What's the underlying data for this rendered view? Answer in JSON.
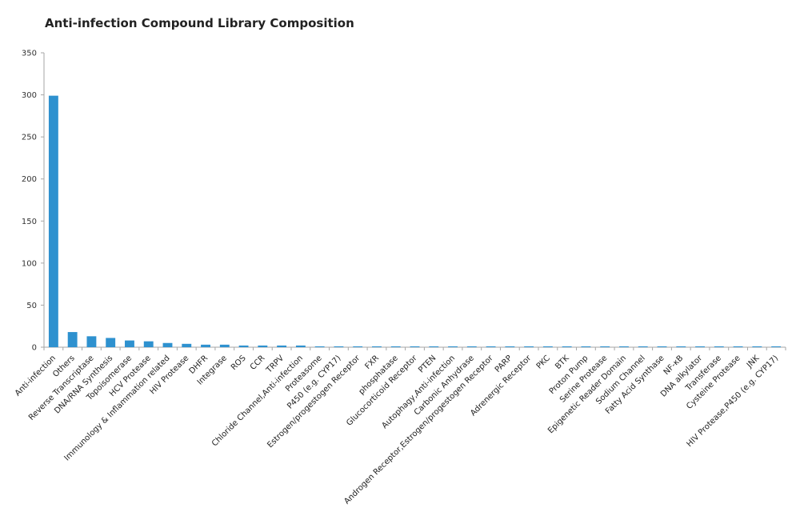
{
  "chart_data": {
    "type": "bar",
    "title": "Anti-infection Compound Library Composition",
    "xlabel": "",
    "ylabel": "",
    "ylim": [
      0,
      350
    ],
    "yticks": [
      0,
      50,
      100,
      150,
      200,
      250,
      300,
      350
    ],
    "grid": false,
    "legend": "none",
    "bar_color": "#2E91CF",
    "axis_color": "#A6A6A6",
    "categories": [
      "Anti-infection",
      "Others",
      "Reverse Transcriptase",
      "DNA/RNA Synthesis",
      "Topoisomerase",
      "HCV Protease",
      "Immunology & Inflammation related",
      "HIV Protease",
      "DHFR",
      "Integrase",
      "ROS",
      "CCR",
      "TRPV",
      "Chloride Channel,Anti-infection",
      "Proteasome",
      "P450 (e.g. CYP17)",
      "Estrogen/progestogen Receptor",
      "FXR",
      "phosphatase",
      "Glucocorticoid Receptor",
      "PTEN",
      "Autophagy,Anti-infection",
      "Carbonic Anhydrase",
      "Androgen Receptor,Estrogen/progestogen Receptor",
      "PARP",
      "Adrenergic Receptor",
      "PKC",
      "BTK",
      "Proton Pump",
      "Serine Protease",
      "Epigenetic Reader Domain",
      "Sodium Channel",
      "Fatty Acid Synthase",
      "NF-κB",
      "DNA alkylator",
      "Transferase",
      "Cysteine Protease",
      "JNK",
      "HIV Protease,P450 (e.g. CYP17)"
    ],
    "values": [
      299,
      18,
      13,
      11,
      8,
      7,
      5,
      4,
      3,
      3,
      2,
      2,
      2,
      2,
      1,
      1,
      1,
      1,
      1,
      1,
      1,
      1,
      1,
      1,
      1,
      1,
      1,
      1,
      1,
      1,
      1,
      1,
      1,
      1,
      1,
      1,
      1,
      1,
      1
    ]
  }
}
